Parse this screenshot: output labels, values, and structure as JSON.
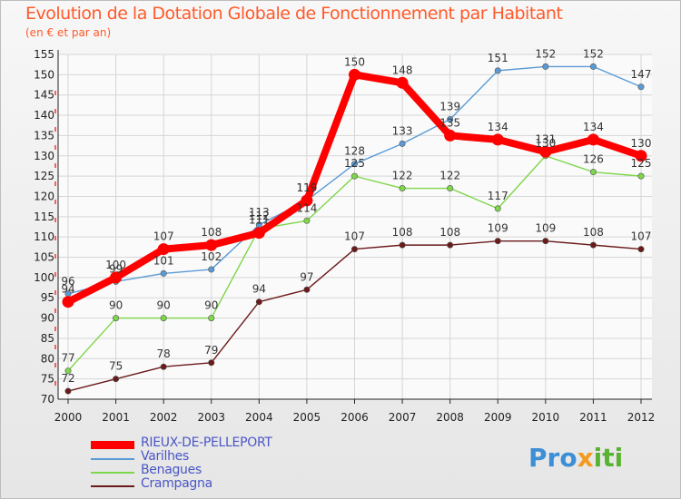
{
  "title": "Evolution de la Dotation Globale de Fonctionnement par Habitant",
  "subtitle": "(en € et par an)",
  "logo": {
    "part1": "Pro",
    "part2": "x",
    "part3": "iti"
  },
  "chart_data": {
    "type": "line",
    "x": [
      "2000",
      "2001",
      "2002",
      "2003",
      "2004",
      "2005",
      "2006",
      "2007",
      "2008",
      "2009",
      "2010",
      "2011",
      "2012"
    ],
    "ylim": [
      70,
      155
    ],
    "yticks": [
      70,
      75,
      80,
      85,
      90,
      95,
      100,
      105,
      110,
      115,
      120,
      125,
      130,
      135,
      140,
      145,
      150,
      155
    ],
    "grid": true,
    "series": [
      {
        "name": "Crampagna",
        "color": "#6b1a1a",
        "values": [
          72,
          75,
          78,
          79,
          94,
          97,
          107,
          108,
          108,
          109,
          109,
          108,
          107
        ],
        "labels": [
          "72",
          "75",
          "78",
          "79",
          "94",
          "97",
          "107",
          "108",
          "108",
          "109",
          "109",
          "108",
          "107"
        ]
      },
      {
        "name": "Benagues",
        "color": "#7ed64a",
        "values": [
          77,
          90,
          90,
          90,
          112,
          114,
          125,
          122,
          122,
          117,
          130,
          126,
          125
        ],
        "labels": [
          "77",
          "90",
          "90",
          "90",
          "112",
          "114",
          "125",
          "122",
          "122",
          "117",
          "130",
          "126",
          "125"
        ]
      },
      {
        "name": "Varilhes",
        "color": "#5b9bd5",
        "values": [
          96,
          99,
          101,
          102,
          113,
          119,
          128,
          133,
          139,
          151,
          152,
          152,
          147
        ],
        "labels": [
          "96",
          "99",
          "101",
          "102",
          "113",
          "119",
          "128",
          "133",
          "139",
          "151",
          "152",
          "152",
          "147"
        ]
      },
      {
        "name": "RIEUX-DE-PELLEPORT",
        "color": "#ff0000",
        "values": [
          94,
          100,
          107,
          108,
          111,
          119,
          150,
          148,
          135,
          134,
          131,
          134,
          130
        ],
        "labels": [
          "94",
          "100",
          "107",
          "108",
          "111",
          "119",
          "150",
          "148",
          "135",
          "134",
          "131",
          "134",
          "130"
        ]
      }
    ]
  },
  "legend": [
    {
      "name": "RIEUX-DE-PELLEPORT",
      "color": "#ff0000"
    },
    {
      "name": "Varilhes",
      "color": "#5b9bd5"
    },
    {
      "name": "Benagues",
      "color": "#7ed64a"
    },
    {
      "name": "Crampagna",
      "color": "#6b1a1a"
    }
  ]
}
